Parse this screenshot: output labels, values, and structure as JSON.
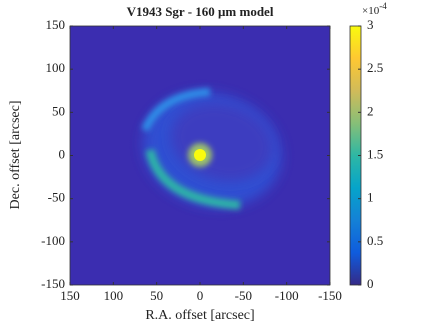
{
  "chart_data": {
    "type": "image",
    "title": "V1943 Sgr - 160 μm model",
    "xlabel": "R.A. offset [arcsec]",
    "ylabel": "Dec. offset [arcsec]",
    "xlim": [
      150,
      -150
    ],
    "xticks": [
      150,
      100,
      50,
      0,
      -50,
      -100,
      -150
    ],
    "ylim": [
      -150,
      150
    ],
    "yticks": [
      -150,
      -100,
      -50,
      0,
      50,
      100,
      150
    ],
    "colorbar": {
      "clim": [
        0,
        3
      ],
      "ticks": [
        0,
        0.5,
        1,
        1.5,
        2,
        2.5,
        3
      ],
      "multiplier": "×10",
      "exponent": "-4"
    },
    "colormap": [
      "#352a87",
      "#0f5cdd",
      "#1481d6",
      "#06a4ca",
      "#2eb7a4",
      "#87bf77",
      "#d1bb59",
      "#fec832",
      "#f9fb0e"
    ]
  }
}
